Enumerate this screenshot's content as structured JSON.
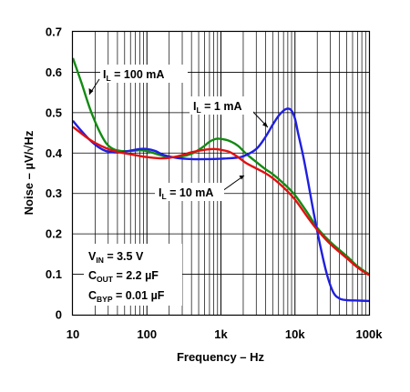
{
  "chart_data": {
    "type": "line",
    "xlabel": "Frequency – Hz",
    "ylabel": "Noise – µV/√Hz",
    "x_scale": "log",
    "xlim": [
      10,
      100000
    ],
    "ylim": [
      0,
      0.7
    ],
    "x_ticks": [
      {
        "value": 10,
        "label": "10"
      },
      {
        "value": 100,
        "label": "100"
      },
      {
        "value": 1000,
        "label": "1k"
      },
      {
        "value": 10000,
        "label": "10k"
      },
      {
        "value": 100000,
        "label": "100k"
      }
    ],
    "y_ticks": [
      {
        "value": 0,
        "label": "0"
      },
      {
        "value": 0.1,
        "label": "0.1"
      },
      {
        "value": 0.2,
        "label": "0.2"
      },
      {
        "value": 0.3,
        "label": "0.3"
      },
      {
        "value": 0.4,
        "label": "0.4"
      },
      {
        "value": 0.5,
        "label": "0.5"
      },
      {
        "value": 0.6,
        "label": "0.6"
      },
      {
        "value": 0.7,
        "label": "0.7"
      }
    ],
    "grid": true,
    "series": [
      {
        "name": "IL = 100 mA",
        "color": "#138a13",
        "points": [
          [
            10,
            0.635
          ],
          [
            13,
            0.575
          ],
          [
            17,
            0.51
          ],
          [
            22,
            0.46
          ],
          [
            28,
            0.425
          ],
          [
            35,
            0.41
          ],
          [
            45,
            0.405
          ],
          [
            60,
            0.405
          ],
          [
            80,
            0.407
          ],
          [
            100,
            0.405
          ],
          [
            150,
            0.395
          ],
          [
            200,
            0.39
          ],
          [
            300,
            0.392
          ],
          [
            400,
            0.398
          ],
          [
            500,
            0.408
          ],
          [
            600,
            0.418
          ],
          [
            700,
            0.428
          ],
          [
            850,
            0.435
          ],
          [
            1000,
            0.435
          ],
          [
            1300,
            0.43
          ],
          [
            1700,
            0.418
          ],
          [
            2200,
            0.398
          ],
          [
            3000,
            0.378
          ],
          [
            4000,
            0.36
          ],
          [
            5000,
            0.348
          ],
          [
            7000,
            0.325
          ],
          [
            10000,
            0.296
          ],
          [
            15000,
            0.25
          ],
          [
            20000,
            0.215
          ],
          [
            30000,
            0.18
          ],
          [
            50000,
            0.145
          ],
          [
            70000,
            0.12
          ],
          [
            100000,
            0.1
          ]
        ]
      },
      {
        "name": "IL = 1 mA",
        "color": "#1f1fe0",
        "points": [
          [
            10,
            0.48
          ],
          [
            13,
            0.455
          ],
          [
            17,
            0.432
          ],
          [
            22,
            0.415
          ],
          [
            28,
            0.405
          ],
          [
            35,
            0.402
          ],
          [
            45,
            0.402
          ],
          [
            60,
            0.406
          ],
          [
            80,
            0.41
          ],
          [
            100,
            0.41
          ],
          [
            130,
            0.405
          ],
          [
            170,
            0.395
          ],
          [
            250,
            0.388
          ],
          [
            400,
            0.385
          ],
          [
            700,
            0.385
          ],
          [
            1000,
            0.386
          ],
          [
            1500,
            0.388
          ],
          [
            2000,
            0.392
          ],
          [
            3000,
            0.41
          ],
          [
            4000,
            0.44
          ],
          [
            5000,
            0.47
          ],
          [
            6000,
            0.492
          ],
          [
            7000,
            0.505
          ],
          [
            8000,
            0.51
          ],
          [
            9000,
            0.505
          ],
          [
            10000,
            0.485
          ],
          [
            11000,
            0.45
          ],
          [
            13000,
            0.39
          ],
          [
            15000,
            0.33
          ],
          [
            18000,
            0.25
          ],
          [
            22000,
            0.17
          ],
          [
            27000,
            0.1
          ],
          [
            33000,
            0.055
          ],
          [
            40000,
            0.04
          ],
          [
            50000,
            0.036
          ],
          [
            70000,
            0.035
          ],
          [
            100000,
            0.034
          ]
        ]
      },
      {
        "name": "IL = 10 mA",
        "color": "#e01010",
        "points": [
          [
            10,
            0.465
          ],
          [
            15,
            0.44
          ],
          [
            20,
            0.425
          ],
          [
            30,
            0.41
          ],
          [
            40,
            0.403
          ],
          [
            60,
            0.397
          ],
          [
            100,
            0.39
          ],
          [
            150,
            0.387
          ],
          [
            200,
            0.388
          ],
          [
            300,
            0.395
          ],
          [
            400,
            0.402
          ],
          [
            600,
            0.408
          ],
          [
            800,
            0.41
          ],
          [
            1000,
            0.408
          ],
          [
            1300,
            0.403
          ],
          [
            1700,
            0.39
          ],
          [
            2200,
            0.375
          ],
          [
            3000,
            0.362
          ],
          [
            4000,
            0.35
          ],
          [
            5000,
            0.338
          ],
          [
            7000,
            0.315
          ],
          [
            10000,
            0.285
          ],
          [
            15000,
            0.24
          ],
          [
            20000,
            0.21
          ],
          [
            30000,
            0.175
          ],
          [
            50000,
            0.14
          ],
          [
            70000,
            0.117
          ],
          [
            100000,
            0.098
          ]
        ]
      }
    ],
    "annotations": {
      "il100": {
        "main": "I",
        "sub": "L",
        "rest": " = 100 mA"
      },
      "il1": {
        "main": "I",
        "sub": "L",
        "rest": " = 1 mA"
      },
      "il10": {
        "main": "I",
        "sub": "L",
        "rest": " = 10 mA"
      },
      "vin": {
        "main": "V",
        "sub": "IN",
        "rest": " = 3.5 V"
      },
      "cout": {
        "main": "C",
        "sub": "OUT",
        "rest": " = 2.2 µF"
      },
      "cbyp": {
        "main": "C",
        "sub": "BYP",
        "rest": " = 0.01 µF"
      }
    }
  }
}
